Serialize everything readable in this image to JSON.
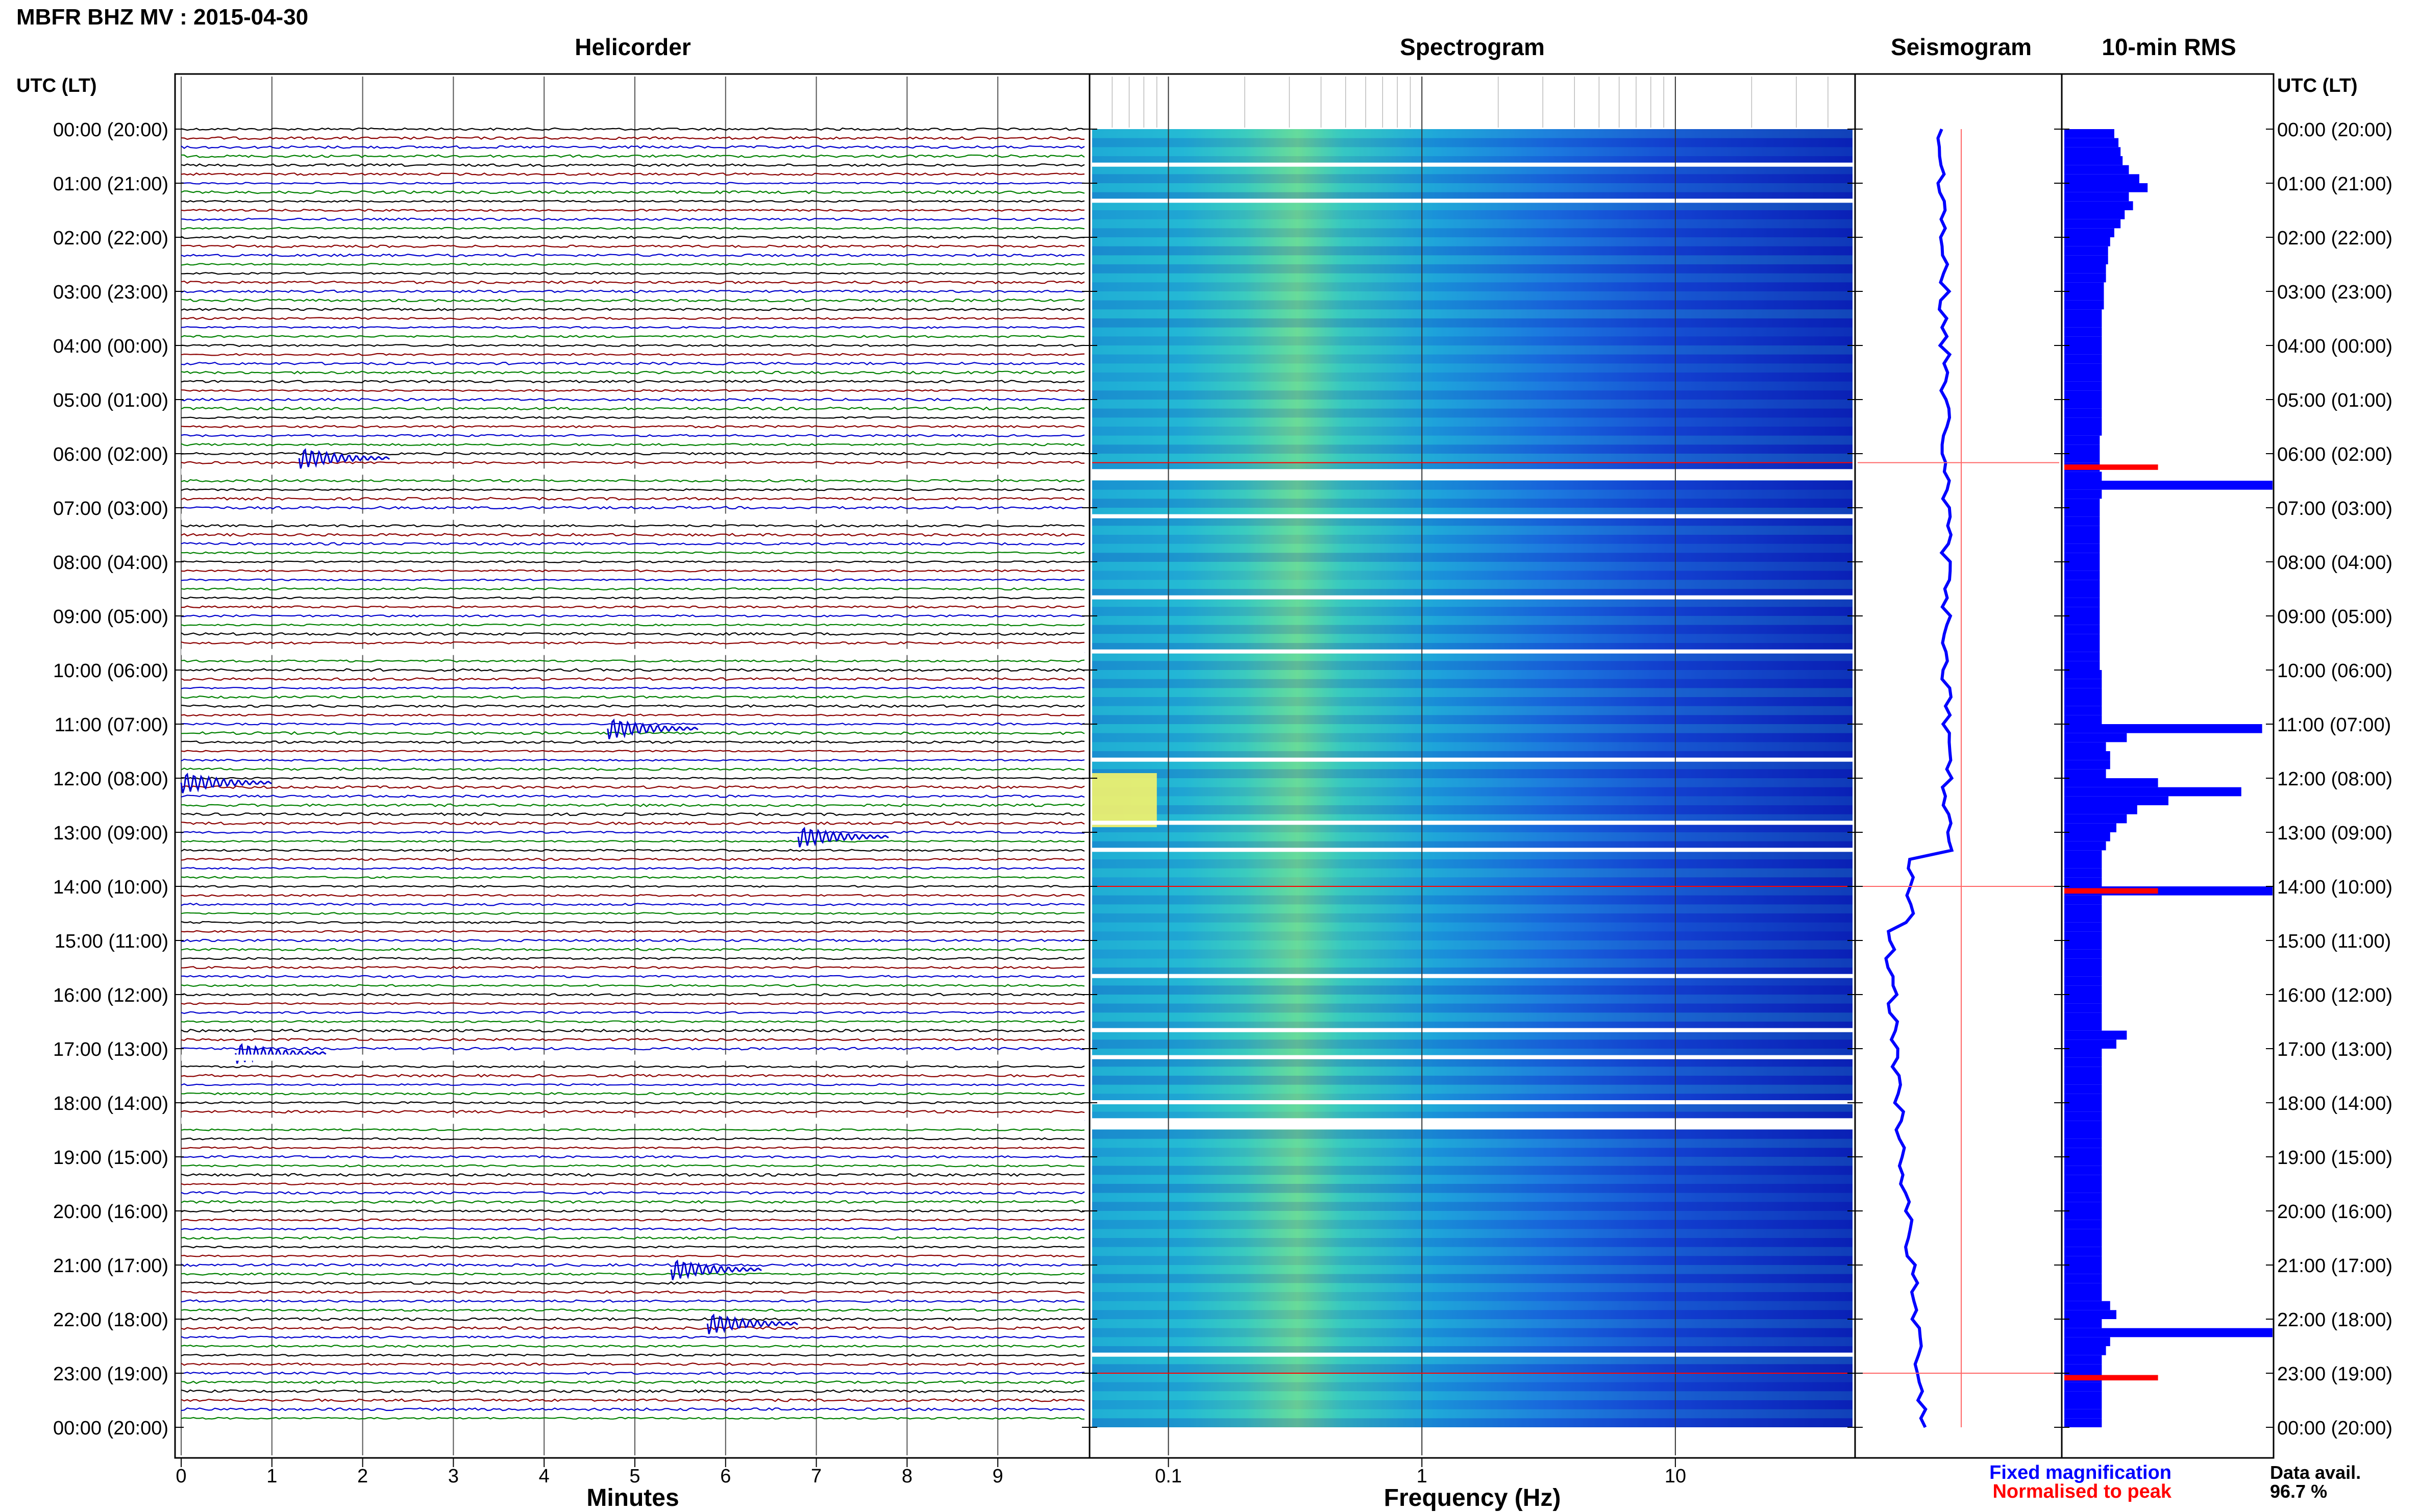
{
  "title": "MBFR BHZ MV : 2015-04-30",
  "panels": {
    "helicorder": "Helicorder",
    "spectrogram": "Spectrogram",
    "seismogram": "Seismogram",
    "rms": "10-min RMS"
  },
  "axis": {
    "time_label_left": "UTC (LT)",
    "time_label_right": "UTC (LT)",
    "minutes_label": "Minutes",
    "frequency_label": "Frequency (Hz)"
  },
  "time_ticks": [
    "00:00 (20:00)",
    "01:00 (21:00)",
    "02:00 (22:00)",
    "03:00 (23:00)",
    "04:00 (00:00)",
    "05:00 (01:00)",
    "06:00 (02:00)",
    "07:00 (03:00)",
    "08:00 (04:00)",
    "09:00 (05:00)",
    "10:00 (06:00)",
    "11:00 (07:00)",
    "12:00 (08:00)",
    "13:00 (09:00)",
    "14:00 (10:00)",
    "15:00 (11:00)",
    "16:00 (12:00)",
    "17:00 (13:00)",
    "18:00 (14:00)",
    "19:00 (15:00)",
    "20:00 (16:00)",
    "21:00 (17:00)",
    "22:00 (18:00)",
    "23:00 (19:00)",
    "00:00 (20:00)"
  ],
  "minute_ticks": [
    "0",
    "1",
    "2",
    "3",
    "4",
    "5",
    "6",
    "7",
    "8",
    "9"
  ],
  "freq_ticks": [
    "0.1",
    "1",
    "10"
  ],
  "legend": {
    "fixed": "Fixed magnification",
    "normalised": "Normalised to peak",
    "fixed_color": "#0000ff",
    "normalised_color": "#ff0000"
  },
  "data_avail": {
    "label": "Data avail.",
    "value": "96.7 %"
  },
  "colors": {
    "trace_cycle": [
      "#000000",
      "#8b0000",
      "#0000cd",
      "#008000"
    ]
  },
  "chart_data": {
    "type": "heatmap",
    "helicorder_minutes_range": [
      0,
      10
    ],
    "frequency_range_hz": [
      0.05,
      50
    ],
    "frequency_scale": "log",
    "trace_rows": 144,
    "rms_10min_bins": [
      0.24,
      0.26,
      0.27,
      0.28,
      0.31,
      0.36,
      0.4,
      0.31,
      0.33,
      0.29,
      0.27,
      0.24,
      0.22,
      0.21,
      0.21,
      0.2,
      0.2,
      0.19,
      0.19,
      0.19,
      0.18,
      0.18,
      0.18,
      0.18,
      0.18,
      0.18,
      0.18,
      0.18,
      0.18,
      0.18,
      0.18,
      0.18,
      0.18,
      0.18,
      0.17,
      0.17,
      0.17,
      0.17,
      0.18,
      1.0,
      0.18,
      0.17,
      0.17,
      0.17,
      0.17,
      0.17,
      0.17,
      0.17,
      0.17,
      0.17,
      0.17,
      0.17,
      0.17,
      0.17,
      0.17,
      0.17,
      0.17,
      0.17,
      0.17,
      0.17,
      0.18,
      0.18,
      0.18,
      0.18,
      0.18,
      0.18,
      0.95,
      0.3,
      0.2,
      0.22,
      0.22,
      0.2,
      0.45,
      0.85,
      0.5,
      0.35,
      0.3,
      0.25,
      0.22,
      0.2,
      0.18,
      0.18,
      0.18,
      0.18,
      1.0,
      0.18,
      0.18,
      0.18,
      0.18,
      0.18,
      0.18,
      0.18,
      0.18,
      0.18,
      0.18,
      0.18,
      0.18,
      0.18,
      0.18,
      0.18,
      0.3,
      0.25,
      0.18,
      0.18,
      0.18,
      0.18,
      0.18,
      0.18,
      0.18,
      0.18,
      0.18,
      0.18,
      0.18,
      0.18,
      0.18,
      0.18,
      0.18,
      0.18,
      0.18,
      0.18,
      0.18,
      0.18,
      0.18,
      0.18,
      0.18,
      0.18,
      0.18,
      0.18,
      0.18,
      0.18,
      0.22,
      0.25,
      0.18,
      1.0,
      0.22,
      0.2,
      0.18,
      0.18,
      0.18,
      0.18,
      0.18,
      0.18,
      0.18,
      0.18
    ],
    "rms_normalised_peaks": [
      "06:10",
      "14:00",
      "23:00"
    ],
    "events": [
      {
        "time": "06:00",
        "minute": 1.3
      },
      {
        "time": "11:00",
        "minute": 4.7
      },
      {
        "time": "12:00",
        "minute": 0.0
      },
      {
        "time": "13:00",
        "minute": 6.8
      },
      {
        "time": "17:00",
        "minute": 0.6
      },
      {
        "time": "21:00",
        "minute": 5.4
      },
      {
        "time": "22:00",
        "minute": 5.8
      }
    ],
    "data_gaps": [
      "06:20",
      "07:10",
      "09:40",
      "17:10",
      "18:20"
    ]
  }
}
